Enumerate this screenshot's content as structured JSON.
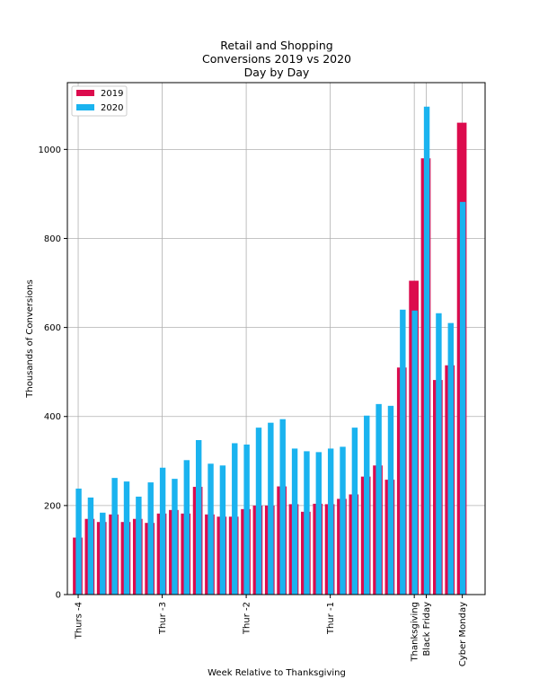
{
  "chart_data": {
    "type": "bar",
    "title": [
      "Retail and Shopping",
      "Conversions 2019 vs 2020",
      "Day by Day"
    ],
    "xlabel": "Week Relative to Thanksgiving",
    "ylabel": "Thousands of Conversions",
    "ylim": [
      0,
      1150
    ],
    "xlim": [
      -0.9,
      33.9
    ],
    "yticks": [
      0,
      200,
      400,
      600,
      800,
      1000
    ],
    "xticks": [
      {
        "x": 0,
        "label": "Thurs -4"
      },
      {
        "x": 7,
        "label": "Thur -3"
      },
      {
        "x": 14,
        "label": "Thur -2"
      },
      {
        "x": 21,
        "label": "Thur -1"
      },
      {
        "x": 28,
        "label": "Thanksgiving"
      },
      {
        "x": 29,
        "label": "Black Friday"
      },
      {
        "x": 32,
        "label": "Cyber Monday"
      }
    ],
    "grid": true,
    "legend_position": "upper left",
    "series": [
      {
        "name": "2019",
        "color": "#dc0b4d",
        "x": [
          0,
          1,
          2,
          3,
          4,
          5,
          6,
          7,
          8,
          9,
          10,
          11,
          12,
          13,
          14,
          15,
          16,
          17,
          18,
          19,
          20,
          21,
          22,
          23,
          24,
          25,
          26,
          27,
          28,
          29,
          30,
          31,
          32
        ],
        "values": [
          128,
          170,
          163,
          180,
          163,
          170,
          161,
          182,
          190,
          182,
          242,
          180,
          175,
          175,
          192,
          200,
          200,
          243,
          203,
          186,
          204,
          203,
          215,
          225,
          265,
          290,
          258,
          510,
          705,
          980,
          482,
          515,
          1060
        ]
      },
      {
        "name": "2020",
        "color": "#1ab3ef",
        "x": [
          0,
          1,
          2,
          3,
          4,
          5,
          6,
          7,
          8,
          9,
          10,
          11,
          12,
          13,
          14,
          15,
          16,
          17,
          18,
          19,
          20,
          21,
          22,
          23,
          24,
          25,
          26,
          27,
          28,
          29,
          30,
          31,
          32
        ],
        "values": [
          238,
          218,
          184,
          262,
          254,
          220,
          252,
          285,
          260,
          302,
          347,
          294,
          290,
          340,
          337,
          375,
          386,
          394,
          328,
          322,
          320,
          328,
          332,
          375,
          402,
          428,
          424,
          640,
          638,
          1096,
          632,
          610,
          882
        ]
      }
    ]
  }
}
